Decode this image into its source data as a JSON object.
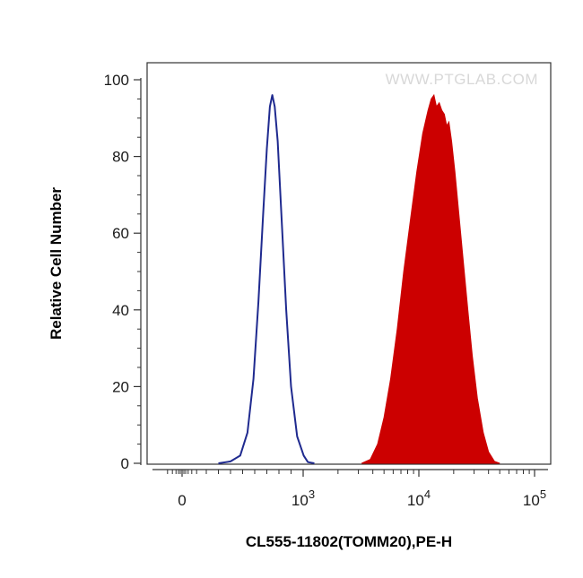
{
  "chart_data": {
    "type": "area",
    "xlabel": "CL555-11802(TOMM20),PE-H",
    "ylabel": "Relative Cell Number",
    "watermark": "WWW.PTGLAB.COM",
    "x_scale": "biexponential",
    "ylim": [
      0,
      100
    ],
    "y_ticks": [
      "0",
      "20",
      "40",
      "60",
      "80",
      "100"
    ],
    "x_ticks": [
      {
        "value": 0,
        "base": "0",
        "exp": ""
      },
      {
        "value": 1000,
        "base": "10",
        "exp": "3"
      },
      {
        "value": 10000,
        "base": "10",
        "exp": "4"
      },
      {
        "value": 100000,
        "base": "10",
        "exp": "5"
      }
    ],
    "series": [
      {
        "style": "outline",
        "color": "#1f2a8f",
        "points": [
          [
            300,
            0
          ],
          [
            400,
            0.5
          ],
          [
            480,
            2
          ],
          [
            540,
            8
          ],
          [
            590,
            22
          ],
          [
            630,
            42
          ],
          [
            670,
            65
          ],
          [
            700,
            82
          ],
          [
            725,
            93
          ],
          [
            745,
            96
          ],
          [
            765,
            93
          ],
          [
            790,
            84
          ],
          [
            820,
            65
          ],
          [
            860,
            40
          ],
          [
            900,
            20
          ],
          [
            950,
            7
          ],
          [
            1010,
            2
          ],
          [
            1100,
            0.3
          ],
          [
            1250,
            0
          ]
        ]
      },
      {
        "style": "filled",
        "color": "#cc0000",
        "points": [
          [
            3200,
            0
          ],
          [
            3800,
            1
          ],
          [
            4400,
            5
          ],
          [
            5000,
            12
          ],
          [
            5700,
            22
          ],
          [
            6500,
            35
          ],
          [
            7400,
            50
          ],
          [
            8500,
            64
          ],
          [
            9600,
            76
          ],
          [
            10800,
            86
          ],
          [
            12000,
            92
          ],
          [
            12800,
            95
          ],
          [
            13500,
            96
          ],
          [
            14200,
            93
          ],
          [
            15000,
            94
          ],
          [
            15800,
            92
          ],
          [
            16600,
            91
          ],
          [
            17400,
            88
          ],
          [
            18200,
            89
          ],
          [
            19200,
            84
          ],
          [
            20500,
            76
          ],
          [
            22000,
            66
          ],
          [
            24000,
            54
          ],
          [
            26500,
            40
          ],
          [
            29000,
            28
          ],
          [
            32000,
            17
          ],
          [
            36000,
            8
          ],
          [
            40000,
            3
          ],
          [
            45000,
            0.5
          ],
          [
            50000,
            0
          ]
        ]
      }
    ]
  }
}
